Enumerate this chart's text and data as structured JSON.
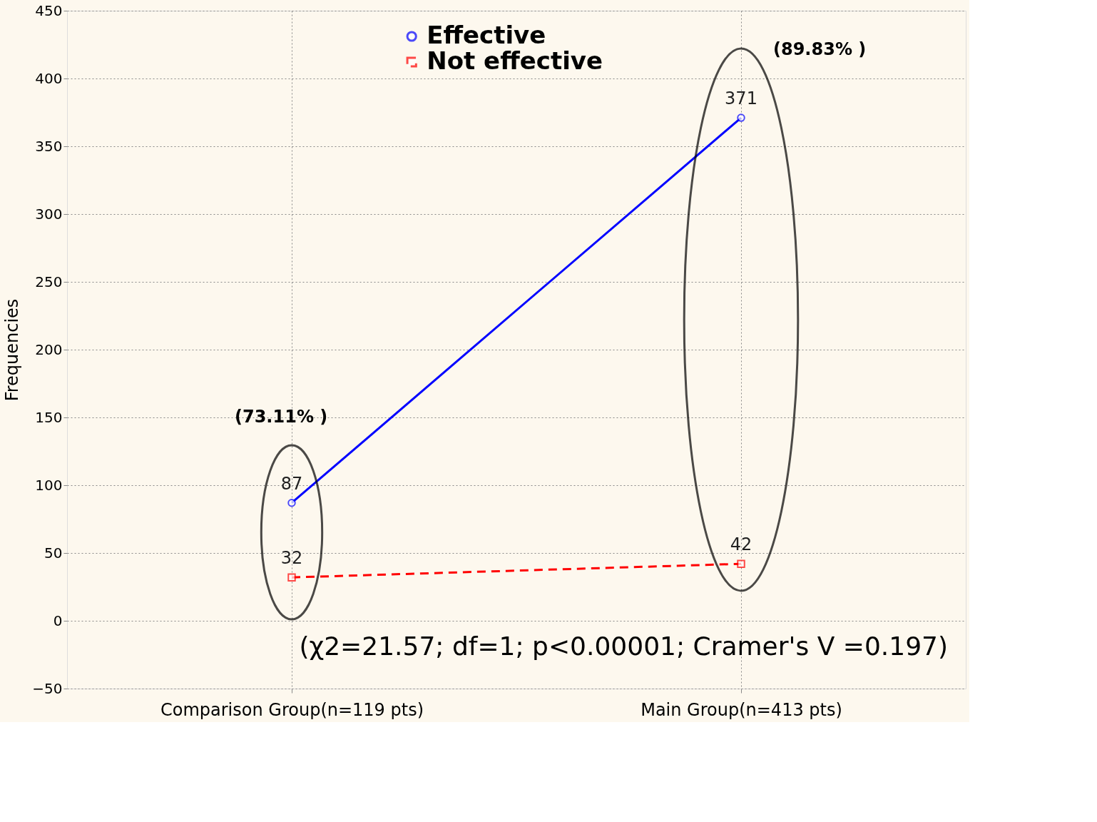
{
  "chart_data": {
    "type": "line",
    "ylabel": "Frequencies",
    "categories": [
      "Comparison Group(n=119 pts)",
      "Main Group(n=413 pts)"
    ],
    "series": [
      {
        "name": "Effective",
        "color": "#0000ff",
        "values": [
          87,
          371
        ],
        "marker": "circle",
        "line_style": "solid"
      },
      {
        "name": "Not effective",
        "color": "#ff0000",
        "values": [
          32,
          42
        ],
        "marker": "square",
        "line_style": "dashed"
      }
    ],
    "ylim": [
      -50,
      450
    ],
    "yticks": [
      -50,
      0,
      50,
      100,
      150,
      200,
      250,
      300,
      350,
      400,
      450
    ],
    "grid": true,
    "legend": "top",
    "data_labels": true,
    "annotations": [
      "(73.11% )",
      "(89.83% )",
      "(χ2=21.57; df=1; p<0.00001; Cramer's V =0.197)"
    ]
  }
}
